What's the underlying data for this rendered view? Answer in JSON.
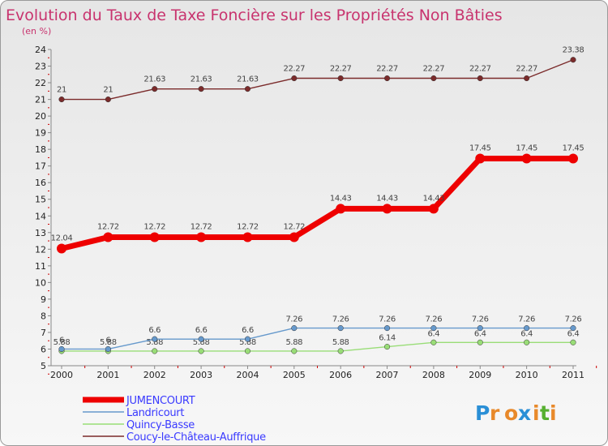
{
  "chart_data": {
    "type": "line",
    "title": "Evolution du Taux de Taxe Foncière sur les Propriétés Non Bâties",
    "subtitle": "(en %)",
    "xlabel": "",
    "ylabel": "",
    "categories": [
      "2000",
      "2001",
      "2002",
      "2003",
      "2004",
      "2005",
      "2006",
      "2007",
      "2008",
      "2009",
      "2010",
      "2011"
    ],
    "ylim": [
      5,
      24
    ],
    "yticks": [
      5,
      6,
      7,
      8,
      9,
      10,
      11,
      12,
      13,
      14,
      15,
      16,
      17,
      18,
      19,
      20,
      21,
      22,
      23,
      24
    ],
    "grid": false,
    "legend_position": "bottom-left",
    "series": [
      {
        "name": "Coucy-le-Château-Auffrique",
        "color": "#7b2b2b",
        "values": [
          21,
          21,
          21.63,
          21.63,
          21.63,
          22.27,
          22.27,
          22.27,
          22.27,
          22.27,
          22.27,
          23.38
        ],
        "labels": [
          "21",
          "21",
          "21.63",
          "21.63",
          "21.63",
          "22.27",
          "22.27",
          "22.27",
          "22.27",
          "22.27",
          "22.27",
          "23.38"
        ]
      },
      {
        "name": "Quincy-Basse",
        "color": "#99dd77",
        "values": [
          5.88,
          5.88,
          5.88,
          5.88,
          5.88,
          5.88,
          5.88,
          6.14,
          6.4,
          6.4,
          6.4,
          6.4
        ],
        "labels": [
          "5.88",
          "5.88",
          "5.88",
          "5.88",
          "5.88",
          "5.88",
          "5.88",
          "6.14",
          "6.4",
          "6.4",
          "6.4",
          "6.4"
        ]
      },
      {
        "name": "Landricourt",
        "color": "#6699cc",
        "values": [
          6,
          6,
          6.6,
          6.6,
          6.6,
          7.26,
          7.26,
          7.26,
          7.26,
          7.26,
          7.26,
          7.26
        ],
        "labels": [
          "6",
          "6",
          "6.6",
          "6.6",
          "6.6",
          "7.26",
          "7.26",
          "7.26",
          "7.26",
          "7.26",
          "7.26",
          "7.26"
        ]
      },
      {
        "name": "JUMENCOURT",
        "color": "#ee0000",
        "values": [
          12.04,
          12.72,
          12.72,
          12.72,
          12.72,
          12.72,
          14.43,
          14.43,
          14.43,
          17.45,
          17.45,
          17.45
        ],
        "labels": [
          "12.04",
          "12.72",
          "12.72",
          "12.72",
          "12.72",
          "12.72",
          "14.43",
          "14.43",
          "14.43",
          "17.45",
          "17.45",
          "17.45"
        ]
      }
    ],
    "legend": [
      "JUMENCOURT",
      "Landricourt",
      "Quincy-Basse",
      "Coucy-le-Château-Auffrique"
    ]
  },
  "logo": {
    "letters": [
      "P",
      "r",
      "o",
      "x",
      "i",
      "t",
      "i"
    ],
    "colors": [
      "#2a8fd6",
      "#e8892a",
      "#e8892a",
      "#2a8fd6",
      "#e8892a",
      "#57b030",
      "#e8892a"
    ]
  }
}
